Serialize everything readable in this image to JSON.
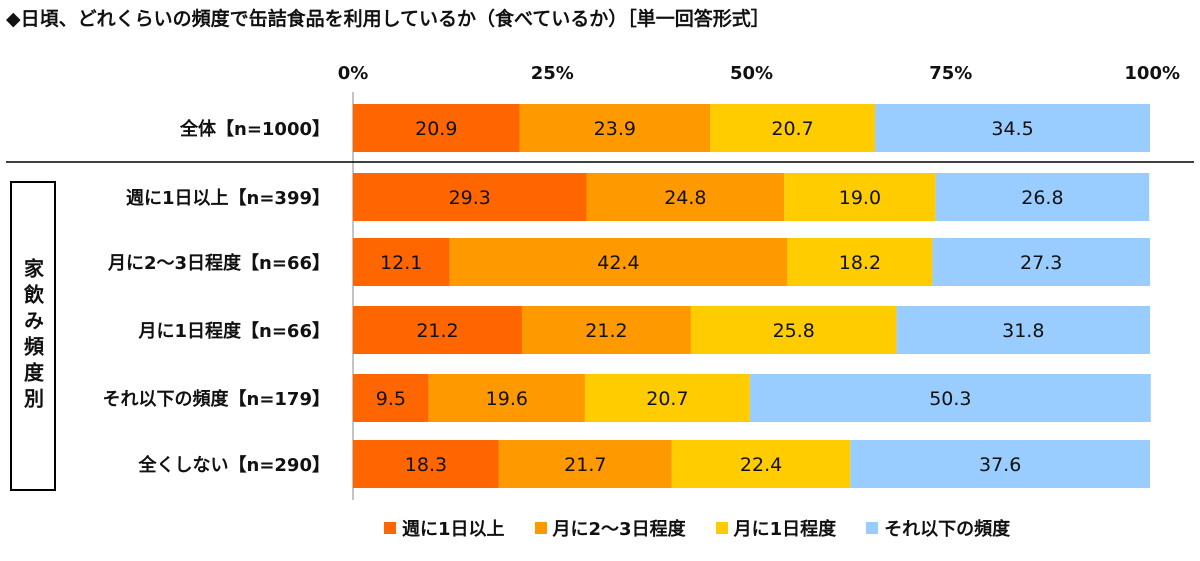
{
  "title": "◆日頃、どれくらいの頻度で缶詰食品を利用しているか（食べているか）［単一回答形式］",
  "group_label": "家飲み頻度別",
  "colors": {
    "weekly": "#FF6600",
    "twice_monthly": "#FF9900",
    "monthly": "#FFCC00",
    "less": "#99CCFF"
  },
  "chart_data": {
    "type": "bar",
    "orientation": "horizontal",
    "stacked": true,
    "xlim": [
      0,
      100
    ],
    "xticks": [
      "0%",
      "25%",
      "50%",
      "75%",
      "100%"
    ],
    "categories": [
      "全体【n=1000】",
      "週に1日以上【n=399】",
      "月に2～3日程度【n=66】",
      "月に1日程度【n=66】",
      "それ以下の頻度【n=179】",
      "全くしない【n=290】"
    ],
    "series": [
      {
        "name": "週に1日以上",
        "color_key": "weekly",
        "values": [
          20.9,
          29.3,
          12.1,
          21.2,
          9.5,
          18.3
        ]
      },
      {
        "name": "月に2～3日程度",
        "color_key": "twice_monthly",
        "values": [
          23.9,
          24.8,
          42.4,
          21.2,
          19.6,
          21.7
        ]
      },
      {
        "name": "月に1日程度",
        "color_key": "monthly",
        "values": [
          20.7,
          19.0,
          18.2,
          25.8,
          20.7,
          22.4
        ]
      },
      {
        "name": "それ以下の頻度",
        "color_key": "less",
        "values": [
          34.5,
          26.8,
          27.3,
          31.8,
          50.3,
          37.6
        ]
      }
    ],
    "value_labels": [
      [
        "20.9",
        "29.3",
        "12.1",
        "21.2",
        "9.5",
        "18.3"
      ],
      [
        "23.9",
        "24.8",
        "42.4",
        "21.2",
        "19.6",
        "21.7"
      ],
      [
        "20.7",
        "19.0",
        "18.2",
        "25.8",
        "20.7",
        "22.4"
      ],
      [
        "34.5",
        "26.8",
        "27.3",
        "31.8",
        "50.3",
        "37.6"
      ]
    ],
    "legend_position": "bottom",
    "grid": false
  }
}
